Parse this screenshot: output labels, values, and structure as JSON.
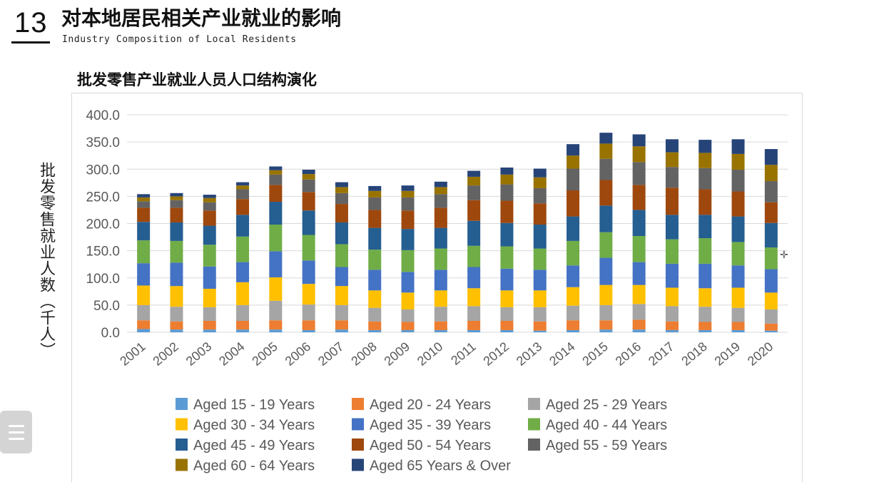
{
  "header": {
    "slide_number": "13",
    "title": "对本地居民相关产业就业的影响",
    "subtitle": "Industry Composition of Local Residents"
  },
  "chart_data": {
    "type": "bar",
    "stacked": true,
    "title": "批发零售产业就业人员人口结构演化",
    "ylabel": "批发零售就业人数（千人）",
    "xlabel": "",
    "ylim": [
      0,
      400
    ],
    "yticks": [
      "0.0",
      "50.0",
      "100.0",
      "150.0",
      "200.0",
      "250.0",
      "300.0",
      "350.0",
      "400.0"
    ],
    "grid": true,
    "legend_position": "bottom",
    "categories": [
      "2001",
      "2002",
      "2003",
      "2004",
      "2005",
      "2006",
      "2007",
      "2008",
      "2009",
      "2010",
      "2011",
      "2012",
      "2013",
      "2014",
      "2015",
      "2016",
      "2017",
      "2018",
      "2019",
      "2020"
    ],
    "series": [
      {
        "name": "Aged 15 - 19 Years",
        "color": "#5B9BD5",
        "values": [
          6,
          5,
          5,
          5,
          5,
          4,
          5,
          4,
          4,
          4,
          4,
          4,
          3,
          4,
          5,
          5,
          4,
          4,
          4,
          3
        ]
      },
      {
        "name": "Aged 20 - 24 Years",
        "color": "#ED7D31",
        "values": [
          16,
          15,
          16,
          16,
          17,
          18,
          17,
          16,
          15,
          16,
          17,
          17,
          17,
          18,
          17,
          18,
          16,
          15,
          15,
          13
        ]
      },
      {
        "name": "Aged 25 - 29 Years",
        "color": "#A5A5A5",
        "values": [
          28,
          27,
          25,
          29,
          36,
          29,
          28,
          25,
          23,
          27,
          27,
          25,
          26,
          27,
          28,
          29,
          28,
          28,
          26,
          26
        ]
      },
      {
        "name": "Aged 30 - 34 Years",
        "color": "#FFC000",
        "values": [
          36,
          38,
          34,
          42,
          43,
          38,
          35,
          32,
          31,
          30,
          33,
          31,
          31,
          34,
          37,
          35,
          34,
          34,
          37,
          31
        ]
      },
      {
        "name": "Aged 35 - 39 Years",
        "color": "#4472C4",
        "values": [
          41,
          43,
          41,
          37,
          48,
          43,
          35,
          38,
          38,
          38,
          39,
          40,
          38,
          40,
          50,
          42,
          44,
          45,
          41,
          43
        ]
      },
      {
        "name": "Aged 40 - 44 Years",
        "color": "#70AD47",
        "values": [
          42,
          40,
          40,
          47,
          49,
          47,
          42,
          37,
          40,
          39,
          39,
          41,
          39,
          45,
          47,
          48,
          45,
          47,
          43,
          40
        ]
      },
      {
        "name": "Aged 45 - 49 Years",
        "color": "#255E91",
        "values": [
          34,
          34,
          35,
          40,
          42,
          45,
          40,
          40,
          39,
          38,
          46,
          43,
          44,
          45,
          49,
          48,
          45,
          43,
          47,
          45
        ]
      },
      {
        "name": "Aged 50 - 54 Years",
        "color": "#9E480E",
        "values": [
          26,
          27,
          28,
          29,
          31,
          34,
          34,
          33,
          34,
          37,
          38,
          41,
          39,
          48,
          47,
          46,
          50,
          47,
          46,
          38
        ]
      },
      {
        "name": "Aged 55 - 59 Years",
        "color": "#636363",
        "values": [
          12,
          14,
          15,
          18,
          19,
          23,
          20,
          23,
          24,
          25,
          27,
          30,
          28,
          40,
          39,
          42,
          38,
          39,
          40,
          39
        ]
      },
      {
        "name": "Aged 60 - 64 Years",
        "color": "#997300",
        "values": [
          7,
          7,
          8,
          7,
          8,
          10,
          11,
          12,
          12,
          13,
          16,
          18,
          20,
          24,
          28,
          29,
          27,
          28,
          29,
          30
        ]
      },
      {
        "name": "Aged 65 Years & Over",
        "color": "#264478",
        "values": [
          6,
          6,
          6,
          6,
          7,
          8,
          9,
          9,
          10,
          10,
          11,
          13,
          16,
          21,
          20,
          22,
          24,
          24,
          27,
          29
        ]
      }
    ]
  }
}
